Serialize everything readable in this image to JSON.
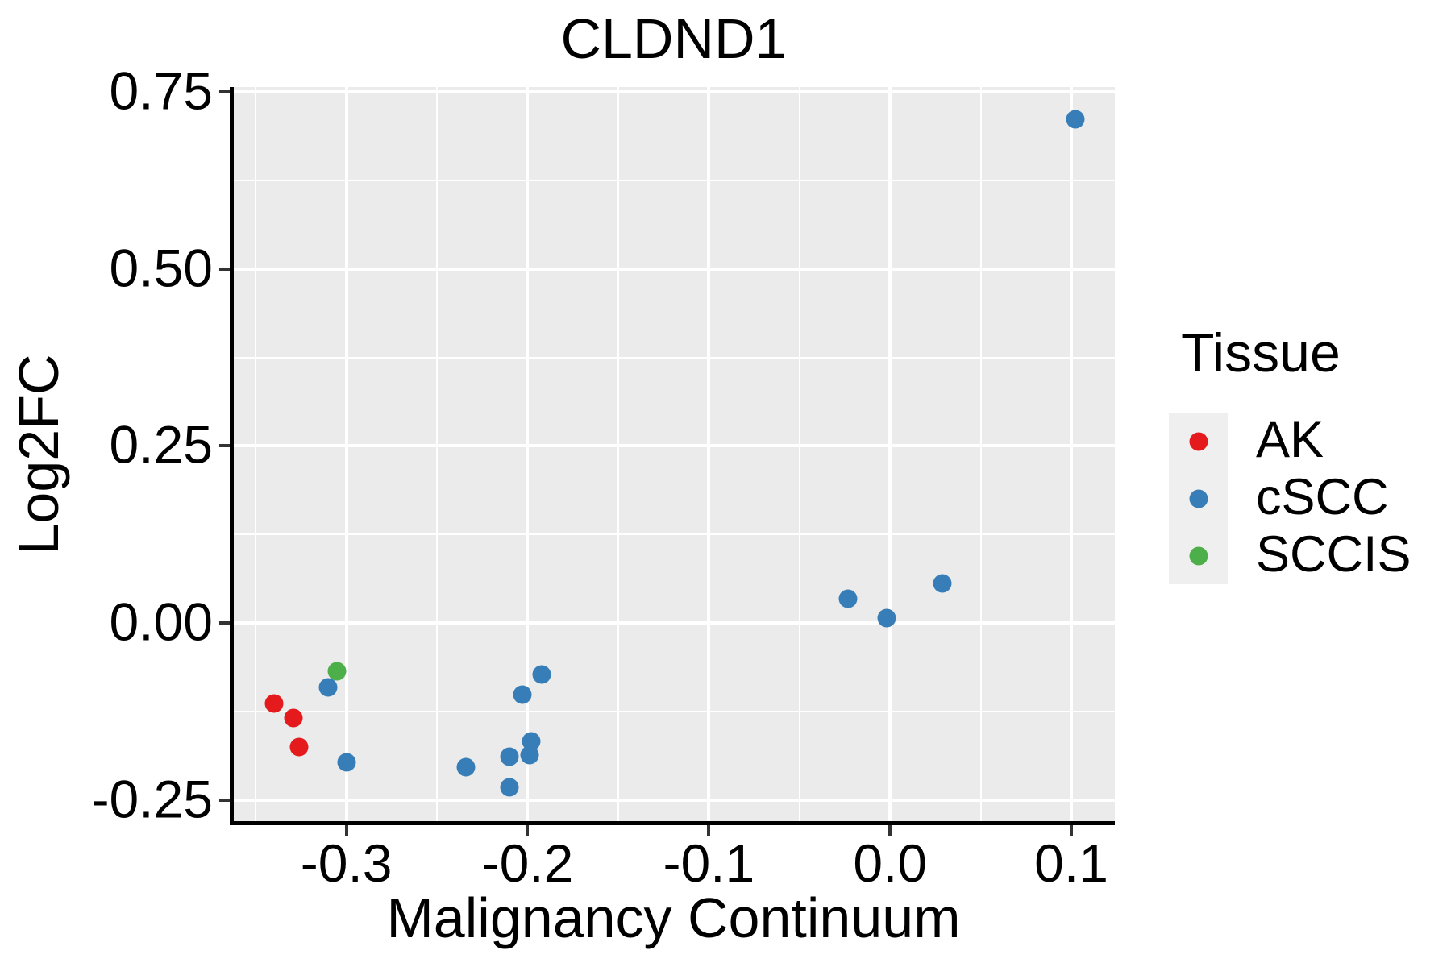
{
  "colors": {
    "background": "#ffffff",
    "panel_background": "#ebebeb",
    "gridline": "#ffffff",
    "axis_line": "#000000",
    "tick_mark": "#333333",
    "text": "#000000",
    "legend_key_background": "#efefef",
    "ak_red": "#e41a1c",
    "cscc_blue": "#377eb8",
    "sccis_green": "#4daf4a"
  },
  "chart_data": {
    "type": "scatter",
    "title": "CLDND1",
    "xlabel": "Malignancy Continuum",
    "ylabel": "Log2FC",
    "xlim": [
      -0.363,
      0.124
    ],
    "ylim": [
      -0.281,
      0.757
    ],
    "x_major_ticks": [
      -0.3,
      -0.2,
      -0.1,
      0.0,
      0.1
    ],
    "x_tick_labels": [
      "-0.3",
      "-0.2",
      "-0.1",
      "0.0",
      "0.1"
    ],
    "x_minor_ticks": [
      -0.35,
      -0.25,
      -0.15,
      -0.05,
      0.05
    ],
    "y_major_ticks": [
      0.75,
      0.5,
      0.25,
      0.0,
      -0.25
    ],
    "y_tick_labels": [
      "0.75",
      "0.50",
      "0.25",
      "0.00",
      "-0.25"
    ],
    "y_minor_ticks": [
      0.625,
      0.375,
      0.125,
      -0.125
    ],
    "grid": "white major+minor gridlines on gray panel",
    "legend_position": "right",
    "legend_title": "Tissue",
    "series": [
      {
        "name": "AK",
        "color": "#e41a1c",
        "points": [
          [
            -0.34,
            -0.114
          ],
          [
            -0.329,
            -0.134
          ],
          [
            -0.326,
            -0.175
          ]
        ]
      },
      {
        "name": "cSCC",
        "color": "#377eb8",
        "points": [
          [
            -0.31,
            -0.091
          ],
          [
            -0.3,
            -0.197
          ],
          [
            -0.234,
            -0.204
          ],
          [
            -0.21,
            -0.189
          ],
          [
            -0.21,
            -0.232
          ],
          [
            -0.203,
            -0.101
          ],
          [
            -0.198,
            -0.167
          ],
          [
            -0.199,
            -0.186
          ],
          [
            -0.192,
            -0.073
          ],
          [
            -0.023,
            0.034
          ],
          [
            -0.002,
            0.007
          ],
          [
            0.029,
            0.056
          ],
          [
            0.102,
            0.711
          ]
        ]
      },
      {
        "name": "SCCIS",
        "color": "#4daf4a",
        "points": [
          [
            -0.305,
            -0.068
          ]
        ]
      }
    ]
  }
}
